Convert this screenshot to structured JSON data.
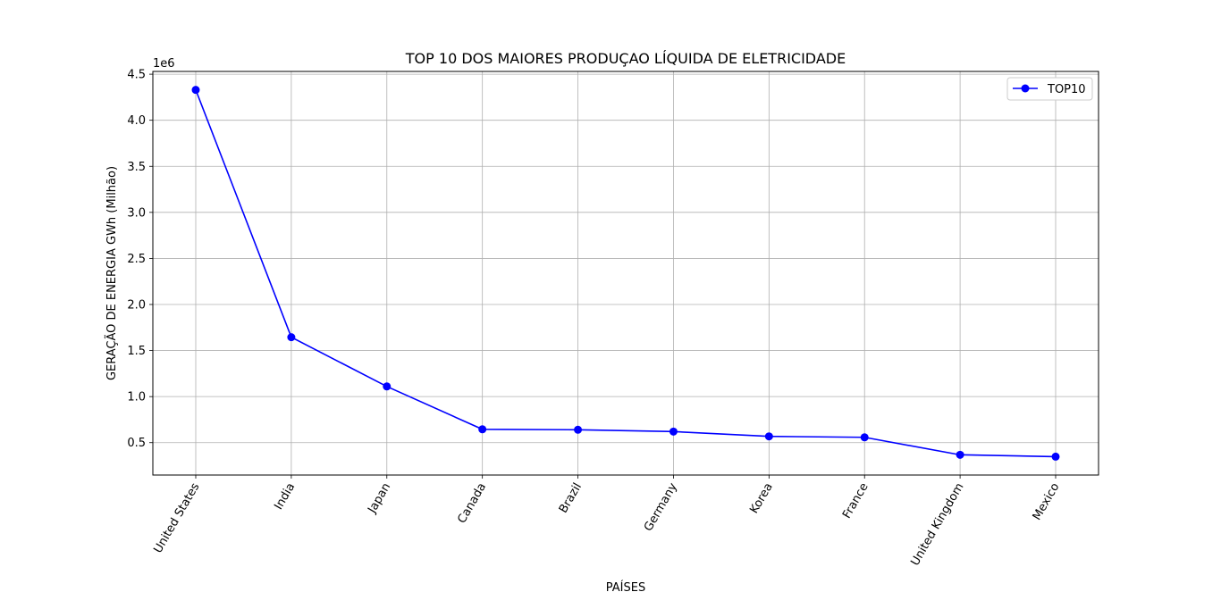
{
  "chart_data": {
    "type": "line",
    "title": "TOP 10 DOS MAIORES PRODUÇAO LÍQUIDA DE ELETRICIDADE",
    "xlabel": "PAÍSES",
    "ylabel": "GERAÇÃO DE ENERGIA GWh (Milhão)",
    "y_offset_label": "1e6",
    "categories": [
      "United States",
      "India",
      "Japan",
      "Canada",
      "Brazil",
      "Germany",
      "Korea",
      "France",
      "United Kingdom",
      "Mexico"
    ],
    "series": [
      {
        "name": "TOP10",
        "color": "#0000ff",
        "marker": "circle",
        "values": [
          4330000,
          1645000,
          1110000,
          645000,
          640000,
          620000,
          568000,
          558000,
          368000,
          348000
        ]
      }
    ],
    "yticks": [
      0.5,
      1.0,
      1.5,
      2.0,
      2.5,
      3.0,
      3.5,
      4.0,
      4.5
    ],
    "ytick_labels": [
      "0.5",
      "1.0",
      "1.5",
      "2.0",
      "2.5",
      "3.0",
      "3.5",
      "4.0",
      "4.5"
    ],
    "y_scale_factor": 1000000,
    "ylim": [
      0.1485,
      4.53
    ],
    "grid": true,
    "legend_position": "top-right",
    "x_tick_rotation": "60deg"
  }
}
